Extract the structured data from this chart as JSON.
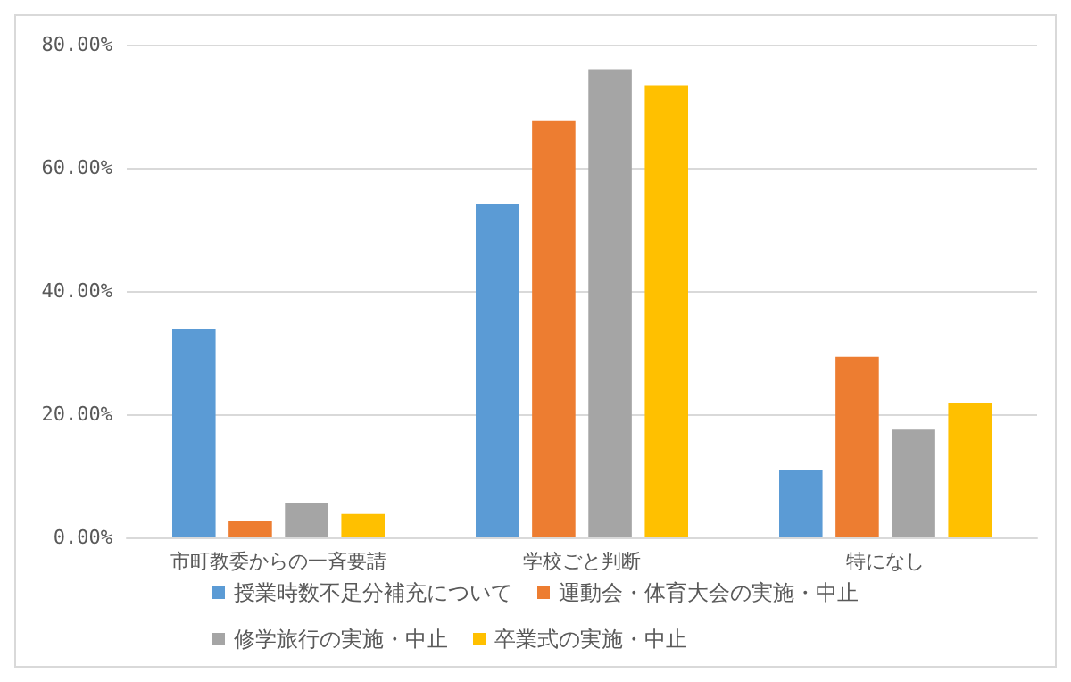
{
  "chart_data": {
    "type": "bar",
    "categories": [
      "市町教委からの一斉要請",
      "学校ごと判断",
      "特になし"
    ],
    "series": [
      {
        "name": "授業時数不足分補充について",
        "color": "#5b9bd5",
        "values": [
          33.8,
          54.2,
          11.0
        ]
      },
      {
        "name": "運動会・体育大会の実施・中止",
        "color": "#ed7d31",
        "values": [
          2.6,
          67.7,
          29.3
        ]
      },
      {
        "name": "修学旅行の実施・中止",
        "color": "#a5a5a5",
        "values": [
          5.6,
          76.0,
          17.5
        ]
      },
      {
        "name": "卒業式の実施・中止",
        "color": "#ffc000",
        "values": [
          3.8,
          73.4,
          21.8
        ]
      }
    ],
    "ylim": [
      0,
      80
    ],
    "yticks": [
      {
        "value": 0,
        "label": "0.00%"
      },
      {
        "value": 20,
        "label": "20.00%"
      },
      {
        "value": 40,
        "label": "40.00%"
      },
      {
        "value": 60,
        "label": "60.00%"
      },
      {
        "value": 80,
        "label": "80.00%"
      }
    ],
    "grid": "y",
    "legend": "bottom"
  }
}
